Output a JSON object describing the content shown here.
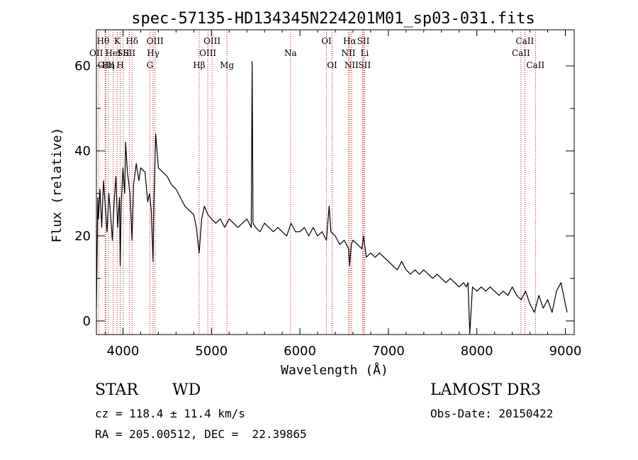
{
  "chart_data": {
    "type": "line",
    "title": "spec-57135-HD134345N224201M01_sp03-031.fits",
    "xlabel": "Wavelength (Å)",
    "ylabel": "Flux (relative)",
    "xlim": [
      3700,
      9100
    ],
    "ylim": [
      -3.2,
      68.5
    ],
    "x_ticks": [
      4000,
      5000,
      6000,
      7000,
      8000,
      9000
    ],
    "x_tick_labels": [
      "4000",
      "5000",
      "6000",
      "7000",
      "8000",
      "9000"
    ],
    "y_ticks": [
      0,
      20,
      40,
      60
    ],
    "y_tick_labels": [
      "0",
      "20",
      "40",
      "60"
    ],
    "grid": false,
    "series": [
      {
        "name": "spectrum",
        "x": [
          3700,
          3716,
          3724,
          3740,
          3760,
          3780,
          3800,
          3820,
          3840,
          3860,
          3880,
          3900,
          3920,
          3940,
          3960,
          3969,
          3980,
          4000,
          4020,
          4030,
          4050,
          4080,
          4102,
          4120,
          4150,
          4180,
          4200,
          4250,
          4280,
          4300,
          4320,
          4340,
          4350,
          4370,
          4400,
          4450,
          4500,
          4550,
          4600,
          4650,
          4700,
          4750,
          4800,
          4830,
          4861,
          4890,
          4920,
          4960,
          5000,
          5050,
          5100,
          5150,
          5200,
          5250,
          5300,
          5350,
          5400,
          5450,
          5460,
          5470,
          5500,
          5550,
          5600,
          5650,
          5700,
          5750,
          5800,
          5850,
          5900,
          5950,
          6000,
          6050,
          6100,
          6150,
          6200,
          6250,
          6300,
          6330,
          6350,
          6400,
          6450,
          6500,
          6550,
          6563,
          6580,
          6600,
          6650,
          6700,
          6720,
          6750,
          6800,
          6850,
          6900,
          6950,
          7000,
          7050,
          7100,
          7150,
          7200,
          7250,
          7300,
          7350,
          7400,
          7450,
          7500,
          7550,
          7600,
          7650,
          7700,
          7750,
          7800,
          7850,
          7880,
          7900,
          7920,
          7950,
          8000,
          8050,
          8100,
          8150,
          8200,
          8250,
          8300,
          8350,
          8400,
          8450,
          8500,
          8550,
          8600,
          8650,
          8700,
          8750,
          8800,
          8850,
          8900,
          8950,
          9000,
          9020
        ],
        "y": [
          3.0,
          29.0,
          24.0,
          31.0,
          22.0,
          33.0,
          27.0,
          21.0,
          30.0,
          25.0,
          19.0,
          28.0,
          34.0,
          22.0,
          29.0,
          13.0,
          27.0,
          36.0,
          30.0,
          42.0,
          35.0,
          30.0,
          19.0,
          32.0,
          37.0,
          33.0,
          36.0,
          35.0,
          28.0,
          30.0,
          26.0,
          14.0,
          28.0,
          44.0,
          36.0,
          35.0,
          34.0,
          32.0,
          31.0,
          29.0,
          27.0,
          26.0,
          25.0,
          22.0,
          16.0,
          24.0,
          27.0,
          25.0,
          24.0,
          23.0,
          24.0,
          22.0,
          24.0,
          23.0,
          22.0,
          23.0,
          24.0,
          22.0,
          61.0,
          23.0,
          22.0,
          21.0,
          23.0,
          22.0,
          21.0,
          22.0,
          21.0,
          20.0,
          23.0,
          21.0,
          21.0,
          22.0,
          20.0,
          22.0,
          20.0,
          21.0,
          19.0,
          27.0,
          21.0,
          20.0,
          18.0,
          19.0,
          17.0,
          13.0,
          18.0,
          19.0,
          18.0,
          17.0,
          20.0,
          15.0,
          16.0,
          15.0,
          16.0,
          15.0,
          14.0,
          13.0,
          12.0,
          14.0,
          12.0,
          11.0,
          12.0,
          11.0,
          12.0,
          11.0,
          10.0,
          11.0,
          10.0,
          9.0,
          10.0,
          9.0,
          8.0,
          9.0,
          8.0,
          9.0,
          -3.0,
          8.0,
          7.0,
          8.0,
          7.0,
          8.0,
          7.0,
          6.0,
          7.0,
          6.0,
          8.0,
          6.0,
          5.0,
          7.0,
          4.0,
          2.0,
          6.0,
          3.0,
          5.0,
          2.0,
          7.0,
          9.0,
          4.0,
          2.0
        ]
      }
    ],
    "lines": [
      {
        "label": "OII",
        "wavelength": 3727,
        "row": 2,
        "align": "right"
      },
      {
        "label": "Hθ",
        "wavelength": 3798,
        "row": 1,
        "align": "right"
      },
      {
        "label": "OIII",
        "wavelength": 3810,
        "row": 3,
        "align": "center"
      },
      {
        "label": "Hη",
        "wavelength": 3835,
        "row": 3,
        "align": "center"
      },
      {
        "label": "HeI",
        "wavelength": 3889,
        "row": 2,
        "align": "center"
      },
      {
        "label": "K",
        "wavelength": 3934,
        "row": 1,
        "align": "center"
      },
      {
        "label": "SII",
        "wavelength": 4003,
        "row": 2,
        "align": "center"
      },
      {
        "label": "H",
        "wavelength": 3969,
        "row": 3,
        "align": "center"
      },
      {
        "label": "Hδ",
        "wavelength": 4102,
        "row": 1,
        "align": "center"
      },
      {
        "label": "SII",
        "wavelength": 4072,
        "row": 2,
        "align": "center"
      },
      {
        "label": "OIII",
        "wavelength": 4363,
        "row": 1,
        "align": "center"
      },
      {
        "label": "Hγ",
        "wavelength": 4341,
        "row": 2,
        "align": "center"
      },
      {
        "label": "G",
        "wavelength": 4305,
        "row": 3,
        "align": "center"
      },
      {
        "label": "Hβ",
        "wavelength": 4861,
        "row": 3,
        "align": "center"
      },
      {
        "label": "OIII",
        "wavelength": 5007,
        "row": 1,
        "align": "center"
      },
      {
        "label": "OIII",
        "wavelength": 4959,
        "row": 2,
        "align": "center"
      },
      {
        "label": "Mg",
        "wavelength": 5175,
        "row": 3,
        "align": "center"
      },
      {
        "label": "Na",
        "wavelength": 5894,
        "row": 2,
        "align": "center"
      },
      {
        "label": "OI",
        "wavelength": 6300,
        "row": 1,
        "align": "center"
      },
      {
        "label": "OI",
        "wavelength": 6364,
        "row": 3,
        "align": "center"
      },
      {
        "label": "Hα",
        "wavelength": 6563,
        "row": 1,
        "align": "center"
      },
      {
        "label": "NII",
        "wavelength": 6548,
        "row": 2,
        "align": "center"
      },
      {
        "label": "NII",
        "wavelength": 6583,
        "row": 3,
        "align": "center"
      },
      {
        "label": "SII",
        "wavelength": 6717,
        "row": 1,
        "align": "center"
      },
      {
        "label": "Li",
        "wavelength": 6708,
        "row": 2,
        "align": "left"
      },
      {
        "label": "SII",
        "wavelength": 6731,
        "row": 3,
        "align": "center"
      },
      {
        "label": "CaII",
        "wavelength": 8542,
        "row": 1,
        "align": "center"
      },
      {
        "label": "CaII",
        "wavelength": 8498,
        "row": 2,
        "align": "center"
      },
      {
        "label": "CaII",
        "wavelength": 8662,
        "row": 3,
        "align": "center"
      }
    ]
  },
  "info": {
    "class": "STAR",
    "subclass": "WD",
    "survey": "LAMOST DR3",
    "cz": "cz = 118.4 ± 11.4 km/s",
    "obs_date": "Obs-Date: 20150422",
    "coords": "RA = 205.00512, DEC =  22.39865"
  }
}
